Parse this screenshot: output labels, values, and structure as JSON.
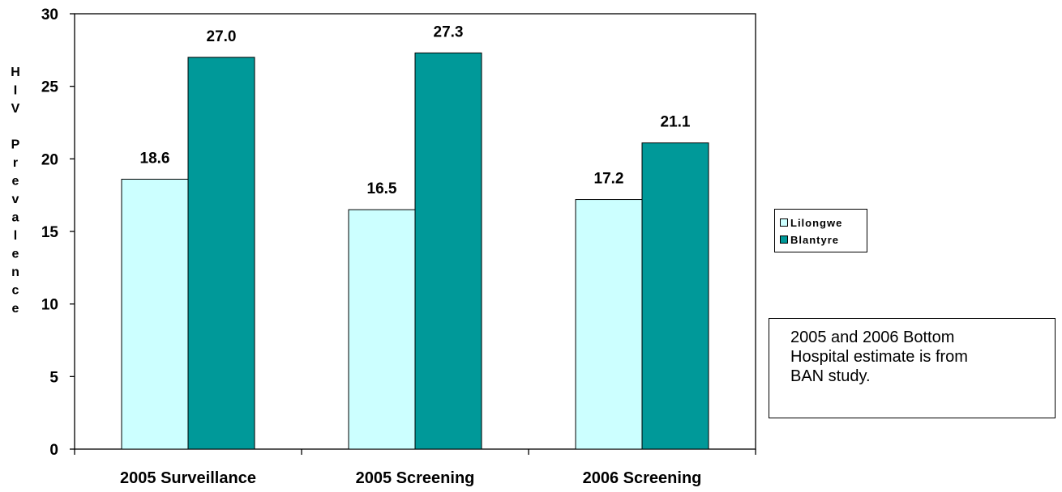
{
  "chart_data": {
    "type": "bar",
    "categories": [
      "2005 Surveillance",
      "2005 Screening",
      "2006 Screening"
    ],
    "series": [
      {
        "name": "Lilongwe",
        "values": [
          18.6,
          16.5,
          17.2
        ],
        "labels": [
          "18.6",
          "16.5",
          "17.2"
        ],
        "color": "#ccffff"
      },
      {
        "name": "Blantyre",
        "values": [
          27.0,
          27.3,
          21.1
        ],
        "labels": [
          "27.0",
          "27.3",
          "21.1"
        ],
        "color": "#009999"
      }
    ],
    "ylabel": "HIV Prevalence",
    "ylim": [
      0,
      30
    ],
    "yticks": [
      0,
      5,
      10,
      15,
      20,
      25,
      30
    ],
    "grid": false,
    "legend_position": "right"
  },
  "legend": {
    "items": [
      {
        "label": "Lilongwe",
        "color": "#ccffff"
      },
      {
        "label": "Blantyre",
        "color": "#009999"
      }
    ]
  },
  "note": {
    "lines": [
      "2005 and 2006 Bottom",
      "Hospital estimate is from",
      "BAN study."
    ]
  }
}
